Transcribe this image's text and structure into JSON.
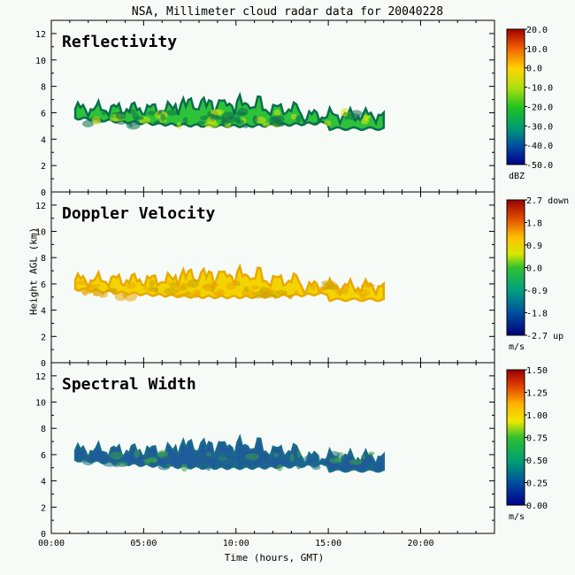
{
  "title": "NSA, Millimeter cloud radar data for 20040228",
  "ylabel": "Height AGL (km)",
  "xlabel": "Time (hours, GMT)",
  "chart_data": [
    {
      "type": "heatmap",
      "title": "Reflectivity",
      "xlim": [
        0,
        24
      ],
      "ylim": [
        0,
        13
      ],
      "yticks": [
        "0",
        "2",
        "4",
        "6",
        "8",
        "10",
        "12"
      ],
      "colorbar": {
        "ticks": [
          "20.0",
          "10.0",
          "0.0",
          "-10.0",
          "-20.0",
          "-30.0",
          "-40.0",
          "-50.0"
        ],
        "unit": "dBZ",
        "range": [
          -50,
          20
        ]
      },
      "colors": {
        "edge": "#0a6e4e",
        "body": "#2ec23a",
        "core": "#d8e80a"
      },
      "cloud": [
        {
          "time_start": 1.3,
          "time_end": 18.0,
          "base_km": 4.7,
          "top_km": 6.7
        }
      ]
    },
    {
      "type": "heatmap",
      "title": "Doppler Velocity",
      "xlim": [
        0,
        24
      ],
      "ylim": [
        0,
        13
      ],
      "yticks": [
        "0",
        "2",
        "4",
        "6",
        "8",
        "10",
        "12"
      ],
      "colorbar": {
        "ticks": [
          "2.7 down",
          "1.8",
          "0.9",
          "0.0",
          "-0.9",
          "-1.8",
          "-2.7 up"
        ],
        "unit": "m/s",
        "range": [
          -2.7,
          2.7
        ]
      },
      "colors": {
        "edge": "#e8a800",
        "body": "#f4d400",
        "core": "#c8a000"
      },
      "cloud": [
        {
          "time_start": 1.3,
          "time_end": 18.0,
          "base_km": 4.7,
          "top_km": 6.7
        }
      ]
    },
    {
      "type": "heatmap",
      "title": "Spectral Width",
      "xlim": [
        0,
        24
      ],
      "ylim": [
        0,
        13
      ],
      "yticks": [
        "0",
        "2",
        "4",
        "6",
        "8",
        "10",
        "12"
      ],
      "xticks": [
        "00:00",
        "05:00",
        "10:00",
        "15:00",
        "20:00"
      ],
      "colorbar": {
        "ticks": [
          "1.50",
          "1.25",
          "1.00",
          "0.75",
          "0.50",
          "0.25",
          "0.00"
        ],
        "unit": "m/s",
        "range": [
          0,
          1.5
        ]
      },
      "colors": {
        "edge": "#1a6a8a",
        "body": "#1f5a9a",
        "core": "#3aa04a"
      },
      "cloud": [
        {
          "time_start": 1.3,
          "time_end": 18.0,
          "base_km": 4.7,
          "top_km": 6.7
        }
      ]
    }
  ]
}
